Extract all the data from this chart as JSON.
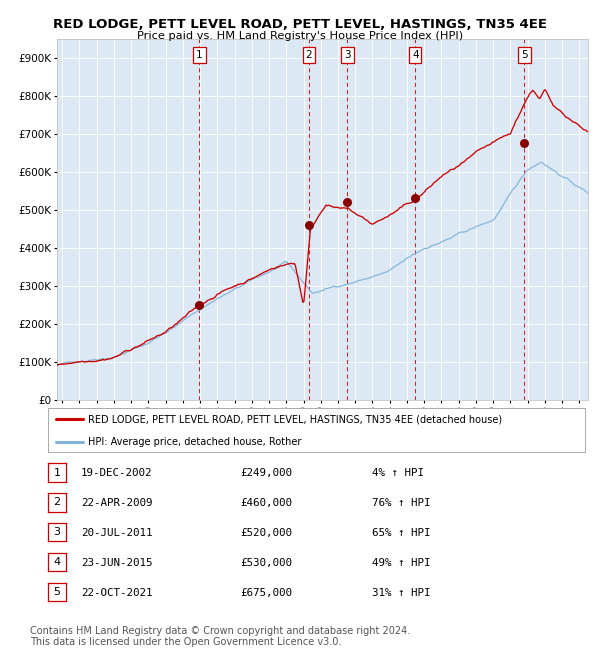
{
  "title": "RED LODGE, PETT LEVEL ROAD, PETT LEVEL, HASTINGS, TN35 4EE",
  "subtitle": "Price paid vs. HM Land Registry's House Price Index (HPI)",
  "plot_bg_color": "#dce9f5",
  "ylim": [
    0,
    950000
  ],
  "xlim_start": 1994.7,
  "xlim_end": 2025.5,
  "yticks": [
    0,
    100000,
    200000,
    300000,
    400000,
    500000,
    600000,
    700000,
    800000,
    900000
  ],
  "ytick_labels": [
    "£0",
    "£100K",
    "£200K",
    "£300K",
    "£400K",
    "£500K",
    "£600K",
    "£700K",
    "£800K",
    "£900K"
  ],
  "xticks": [
    1995,
    1996,
    1997,
    1998,
    1999,
    2000,
    2001,
    2002,
    2003,
    2004,
    2005,
    2006,
    2007,
    2008,
    2009,
    2010,
    2011,
    2012,
    2013,
    2014,
    2015,
    2016,
    2017,
    2018,
    2019,
    2020,
    2021,
    2022,
    2023,
    2024,
    2025
  ],
  "sale_dates": [
    2002.96,
    2009.31,
    2011.55,
    2015.48,
    2021.81
  ],
  "sale_prices": [
    249000,
    460000,
    520000,
    530000,
    675000
  ],
  "sale_labels": [
    "1",
    "2",
    "3",
    "4",
    "5"
  ],
  "red_line_color": "#cc0000",
  "blue_line_color": "#82b4d8",
  "dashed_line_color": "#cc0000",
  "marker_color": "#880000",
  "legend_red_label": "RED LODGE, PETT LEVEL ROAD, PETT LEVEL, HASTINGS, TN35 4EE (detached house)",
  "legend_blue_label": "HPI: Average price, detached house, Rother",
  "table_data": [
    [
      "1",
      "19-DEC-2002",
      "£249,000",
      "4% ↑ HPI"
    ],
    [
      "2",
      "22-APR-2009",
      "£460,000",
      "76% ↑ HPI"
    ],
    [
      "3",
      "20-JUL-2011",
      "£520,000",
      "65% ↑ HPI"
    ],
    [
      "4",
      "23-JUN-2015",
      "£530,000",
      "49% ↑ HPI"
    ],
    [
      "5",
      "22-OCT-2021",
      "£675,000",
      "31% ↑ HPI"
    ]
  ],
  "footnote_line1": "Contains HM Land Registry data © Crown copyright and database right 2024.",
  "footnote_line2": "This data is licensed under the Open Government Licence v3.0."
}
